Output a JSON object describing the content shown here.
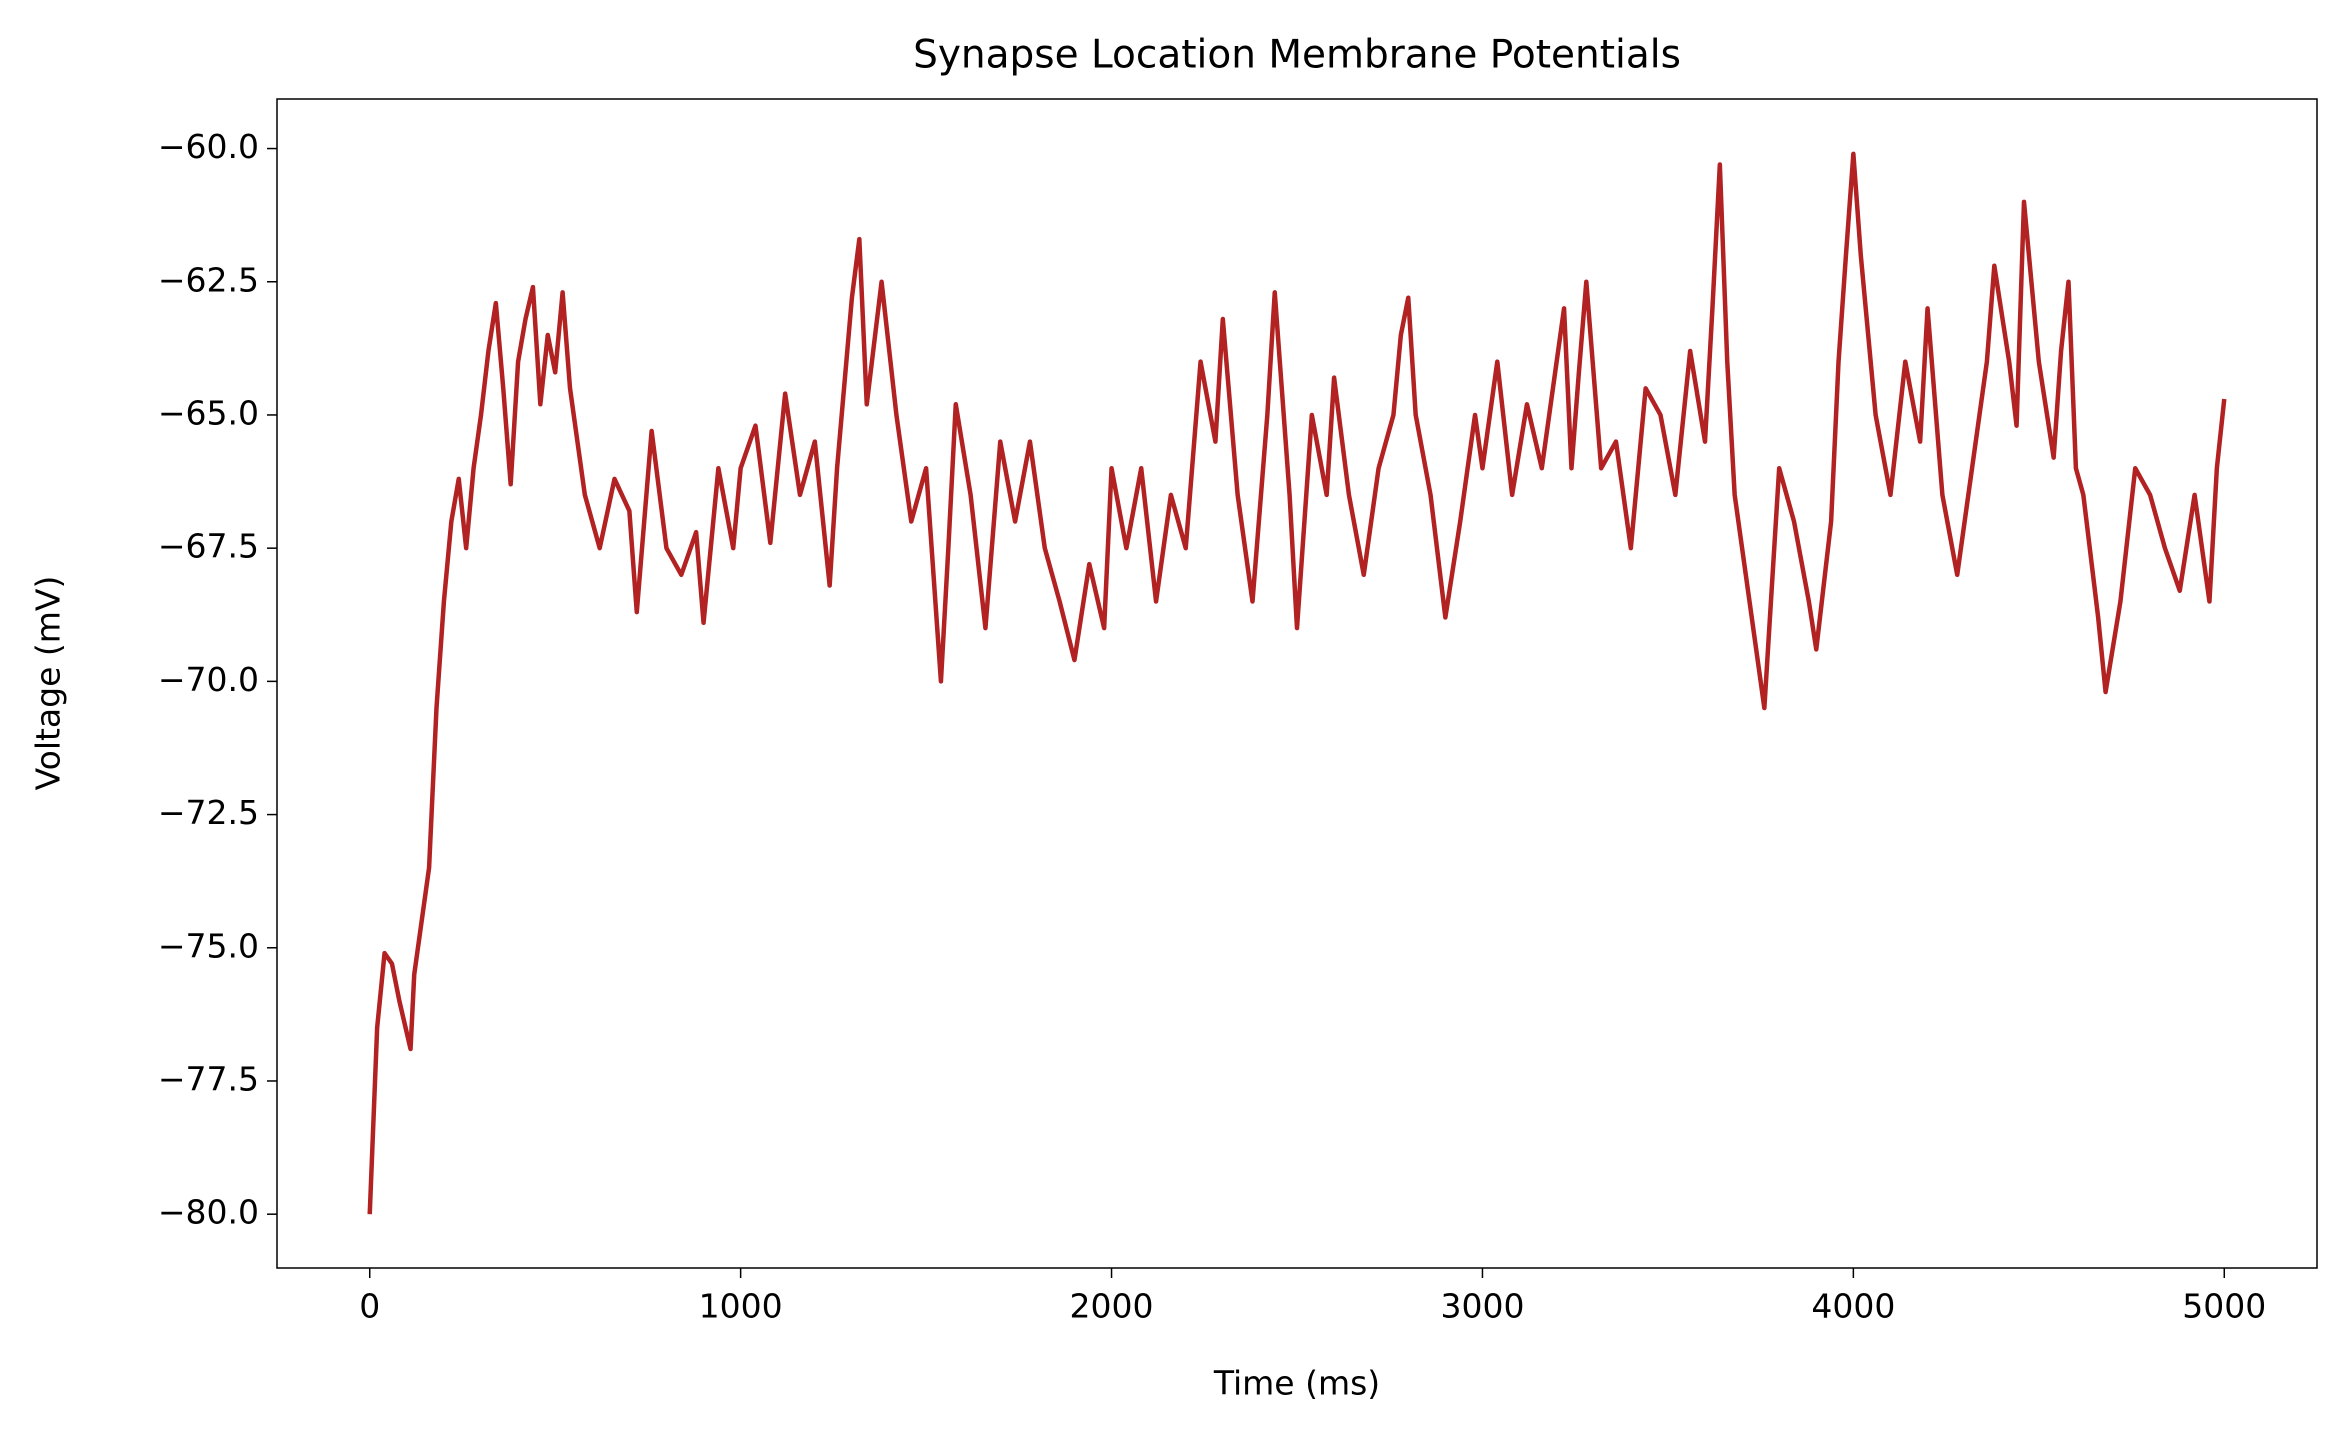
{
  "chart_data": {
    "type": "line",
    "title": "Synapse Location Membrane Potentials",
    "xlabel": "Time (ms)",
    "ylabel": "Voltage (mV)",
    "xlim": [
      -250,
      5250
    ],
    "ylim": [
      -81.01,
      -59.07
    ],
    "xticks": [
      0,
      1000,
      2000,
      3000,
      4000,
      5000
    ],
    "yticks": [
      {
        "value": -80,
        "label": "−80.0"
      },
      {
        "value": -77.5,
        "label": "−77.5"
      },
      {
        "value": -75,
        "label": "−75.0"
      },
      {
        "value": -72.5,
        "label": "−72.5"
      },
      {
        "value": -70,
        "label": "−70.0"
      },
      {
        "value": -67.5,
        "label": "−67.5"
      },
      {
        "value": -65,
        "label": "−65.0"
      },
      {
        "value": -62.5,
        "label": "−62.5"
      },
      {
        "value": -60,
        "label": "−60.0"
      }
    ],
    "grid": false,
    "x": [
      0,
      20,
      40,
      60,
      80,
      110,
      120,
      140,
      160,
      180,
      200,
      220,
      240,
      260,
      280,
      300,
      320,
      340,
      360,
      380,
      400,
      420,
      440,
      460,
      480,
      500,
      520,
      540,
      580,
      620,
      660,
      700,
      720,
      760,
      800,
      840,
      880,
      900,
      940,
      980,
      1000,
      1040,
      1080,
      1120,
      1160,
      1200,
      1240,
      1260,
      1300,
      1320,
      1340,
      1380,
      1420,
      1460,
      1500,
      1540,
      1560,
      1580,
      1620,
      1660,
      1700,
      1740,
      1780,
      1820,
      1860,
      1900,
      1940,
      1980,
      2000,
      2040,
      2080,
      2120,
      2160,
      2200,
      2240,
      2280,
      2300,
      2340,
      2380,
      2420,
      2440,
      2480,
      2500,
      2540,
      2580,
      2600,
      2640,
      2680,
      2720,
      2760,
      2780,
      2800,
      2820,
      2860,
      2900,
      2940,
      2980,
      3000,
      3040,
      3080,
      3120,
      3160,
      3200,
      3220,
      3240,
      3260,
      3280,
      3320,
      3360,
      3400,
      3440,
      3480,
      3520,
      3560,
      3600,
      3620,
      3640,
      3660,
      3680,
      3720,
      3760,
      3800,
      3840,
      3880,
      3900,
      3940,
      3960,
      3980,
      4000,
      4020,
      4060,
      4100,
      4140,
      4180,
      4200,
      4240,
      4280,
      4320,
      4360,
      4380,
      4420,
      4440,
      4460,
      4500,
      4540,
      4560,
      4580,
      4600,
      4620,
      4660,
      4680,
      4720,
      4760,
      4800,
      4840,
      4880,
      4920,
      4960,
      4980,
      5000
    ],
    "series": [
      {
        "color": "#b22222",
        "values": [
          -80,
          -76.5,
          -75.1,
          -75.3,
          -76,
          -76.9,
          -75.5,
          -74.5,
          -73.5,
          -70.5,
          -68.5,
          -67,
          -66.2,
          -67.5,
          -66,
          -65,
          -63.8,
          -62.9,
          -64.5,
          -66.3,
          -64,
          -63.2,
          -62.6,
          -64.8,
          -63.5,
          -64.2,
          -62.7,
          -64.5,
          -66.5,
          -67.5,
          -66.2,
          -66.8,
          -68.7,
          -65.3,
          -67.5,
          -68,
          -67.2,
          -68.9,
          -66,
          -67.5,
          -66,
          -65.2,
          -67.4,
          -64.6,
          -66.5,
          -65.5,
          -68.2,
          -66,
          -62.8,
          -61.7,
          -64.8,
          -62.5,
          -65,
          -67,
          -66,
          -70,
          -67.5,
          -64.8,
          -66.5,
          -69,
          -65.5,
          -67,
          -65.5,
          -67.5,
          -68.5,
          -69.6,
          -67.8,
          -69,
          -66,
          -67.5,
          -66,
          -68.5,
          -66.5,
          -67.5,
          -64,
          -65.5,
          -63.2,
          -66.5,
          -68.5,
          -65,
          -62.7,
          -66.5,
          -69,
          -65,
          -66.5,
          -64.3,
          -66.5,
          -68,
          -66,
          -65,
          -63.5,
          -62.8,
          -65,
          -66.5,
          -68.8,
          -67,
          -65,
          -66,
          -64,
          -66.5,
          -64.8,
          -66,
          -64,
          -63,
          -66,
          -64.2,
          -62.5,
          -66,
          -65.5,
          -67.5,
          -64.5,
          -65,
          -66.5,
          -63.8,
          -65.5,
          -63,
          -60.3,
          -64,
          -66.5,
          -68.5,
          -70.5,
          -66,
          -67,
          -68.5,
          -69.4,
          -67,
          -64,
          -62,
          -60.1,
          -62,
          -65,
          -66.5,
          -64,
          -65.5,
          -63,
          -66.5,
          -68,
          -66,
          -64,
          -62.2,
          -64,
          -65.2,
          -61,
          -64,
          -65.8,
          -63.8,
          -62.5,
          -66,
          -66.5,
          -68.8,
          -70.2,
          -68.5,
          -66,
          -66.5,
          -67.5,
          -68.3,
          -66.5,
          -68.5,
          -66,
          -64.7
        ]
      }
    ]
  }
}
